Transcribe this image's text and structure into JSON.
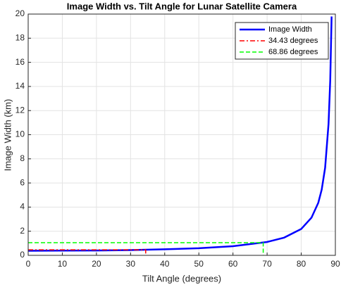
{
  "chart_data": {
    "type": "line",
    "title": "Image Width vs. Tilt Angle for Lunar Satellite Camera",
    "x_label": "Tilt Angle (degrees)",
    "y_label": "Image Width (km)",
    "series": [
      {
        "name": "Image Width",
        "color": "#0000ff",
        "style": "solid",
        "x": [
          0,
          10,
          20,
          30,
          40,
          50,
          60,
          70,
          75,
          80,
          83,
          85,
          86,
          87,
          88,
          88.5,
          88.9
        ],
        "values": [
          0.38,
          0.39,
          0.4,
          0.44,
          0.5,
          0.59,
          0.76,
          1.11,
          1.47,
          2.19,
          3.12,
          4.36,
          5.45,
          7.26,
          10.89,
          14.52,
          19.8
        ]
      },
      {
        "name": "34.43 degrees",
        "color": "#ff0000",
        "style": "dash-dot",
        "x": [
          0,
          34.43,
          34.43
        ],
        "values": [
          0.46,
          0.46,
          0
        ]
      },
      {
        "name": "68.86 degrees",
        "color": "#00ff00",
        "style": "dash",
        "x": [
          0,
          68.86,
          68.86
        ],
        "values": [
          1.05,
          1.05,
          0
        ]
      }
    ],
    "xlim": [
      0,
      90
    ],
    "xticks": [
      0,
      10,
      20,
      30,
      40,
      50,
      60,
      70,
      80,
      90
    ],
    "ylim": [
      0,
      20
    ],
    "yticks": [
      0,
      2,
      4,
      6,
      8,
      10,
      12,
      14,
      16,
      18,
      20
    ],
    "grid": true,
    "legend": "upper right"
  }
}
